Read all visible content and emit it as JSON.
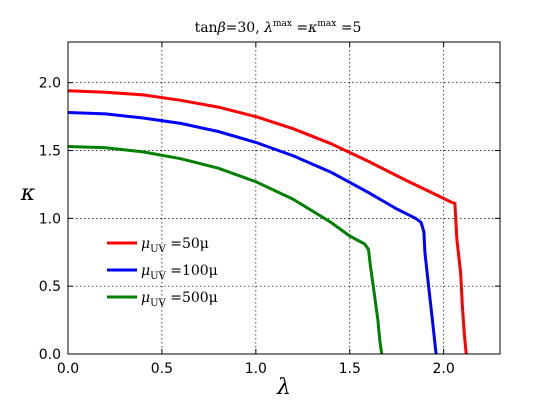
{
  "chart_data": {
    "type": "line",
    "title": "tanβ=30,  λ^max = κ^max = 5",
    "title_parts": {
      "lead": "tan",
      "beta": "β",
      "eq30": "=30,   ",
      "lam": "λ",
      "max1": "max",
      "eq": " =",
      "kap": "κ",
      "max2": "max",
      "eq5": " =5"
    },
    "xlabel": "λ",
    "ylabel": "κ",
    "xlim": [
      0,
      2.3
    ],
    "ylim": [
      0,
      2.3
    ],
    "x_ticks": [
      "0.0",
      "0.5",
      "1.0",
      "1.5",
      "2.0"
    ],
    "y_ticks": [
      "0.0",
      "0.5",
      "1.0",
      "1.5",
      "2.0"
    ],
    "grid": true,
    "legend_position": "lower-left",
    "series": [
      {
        "name": "μUV=50μ",
        "label_parts": {
          "mu": "μ",
          "sub": "UV",
          "rest": " =50μ"
        },
        "color": "#ff0000",
        "x": [
          0.0,
          0.2,
          0.4,
          0.6,
          0.8,
          1.0,
          1.2,
          1.4,
          1.6,
          1.8,
          1.95,
          2.04,
          2.06,
          2.07,
          2.09,
          2.1,
          2.11,
          2.12
        ],
        "y": [
          1.94,
          1.93,
          1.91,
          1.87,
          1.82,
          1.75,
          1.66,
          1.55,
          1.42,
          1.28,
          1.18,
          1.12,
          1.11,
          0.85,
          0.6,
          0.35,
          0.15,
          0.0
        ]
      },
      {
        "name": "μUV=100μ",
        "label_parts": {
          "mu": "μ",
          "sub": "UV",
          "rest": " =100μ"
        },
        "color": "#0000ff",
        "x": [
          0.0,
          0.2,
          0.4,
          0.6,
          0.8,
          1.0,
          1.2,
          1.4,
          1.6,
          1.75,
          1.85,
          1.88,
          1.895,
          1.9,
          1.92,
          1.94,
          1.96
        ],
        "y": [
          1.78,
          1.77,
          1.74,
          1.7,
          1.64,
          1.56,
          1.46,
          1.34,
          1.19,
          1.07,
          1.0,
          0.97,
          0.9,
          0.75,
          0.5,
          0.25,
          0.0
        ]
      },
      {
        "name": "μUV=500μ",
        "label_parts": {
          "mu": "μ",
          "sub": "UV",
          "rest": " =500μ"
        },
        "color": "#008000",
        "x": [
          0.0,
          0.2,
          0.4,
          0.6,
          0.8,
          1.0,
          1.2,
          1.4,
          1.5,
          1.58,
          1.6,
          1.61,
          1.63,
          1.65,
          1.66,
          1.67
        ],
        "y": [
          1.53,
          1.52,
          1.49,
          1.44,
          1.37,
          1.27,
          1.14,
          0.97,
          0.87,
          0.81,
          0.77,
          0.65,
          0.45,
          0.25,
          0.1,
          0.0
        ]
      }
    ]
  }
}
